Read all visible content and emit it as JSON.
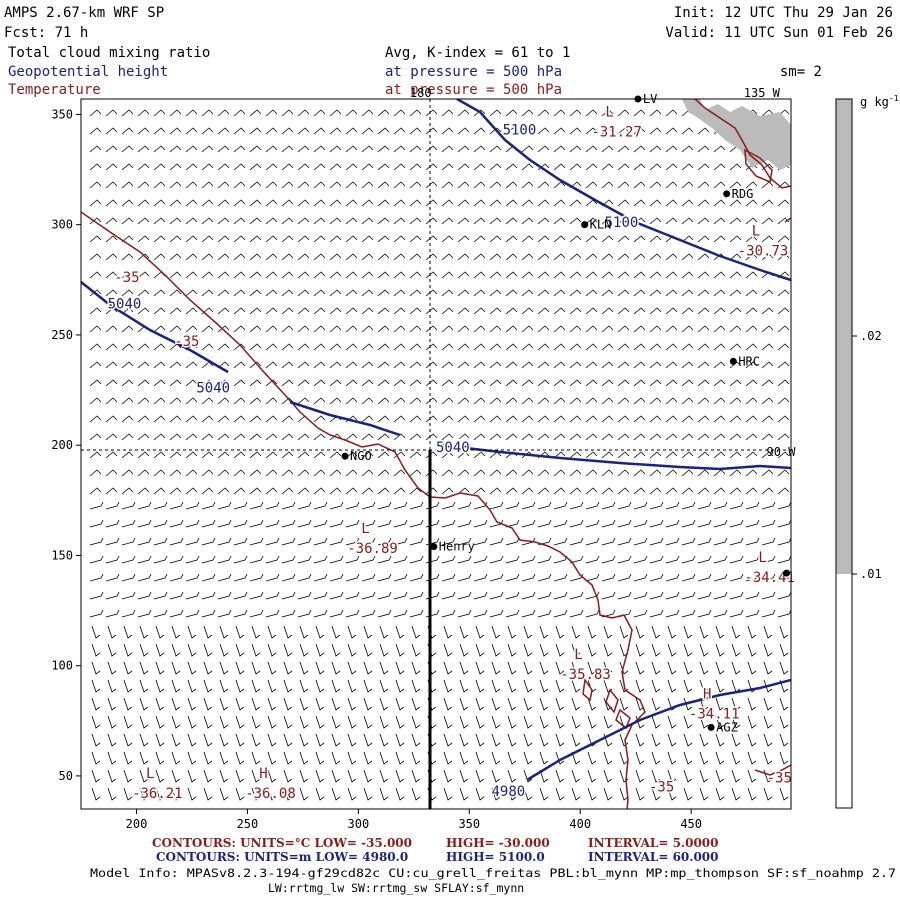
{
  "header": {
    "left1": "AMPS 2.67-km WRF SP",
    "left2": "Fcst:    71 h",
    "left3": "Total cloud mixing ratio",
    "left4": "Geopotential height",
    "left5": "Temperature",
    "mid1": "Avg, K-index =  61 to   1",
    "mid2": "at pressure =  500 hPa",
    "mid3": "at pressure =  500 hPa",
    "right1": "Init: 12 UTC Thu 29 Jan 26",
    "right2": "Valid: 11 UTC Sun 01 Feb 26",
    "sm": "sm= 2"
  },
  "colors": {
    "red": "#8b1a1a",
    "blue": "#1a237e",
    "gray": "#bbbbbb",
    "black": "#000000"
  },
  "chart_data": {
    "type": "map-cross-section",
    "xaxis": {
      "range": [
        175,
        495
      ],
      "ticks": [
        200,
        250,
        300,
        350,
        400,
        450
      ]
    },
    "yaxis": {
      "range": [
        35,
        357
      ],
      "ticks": [
        50,
        100,
        150,
        200,
        250,
        300,
        350
      ]
    },
    "lon_labels": [
      {
        "text": "180",
        "x": 333,
        "y": 358
      },
      {
        "text": "135 W",
        "x": 490,
        "y": 358
      },
      {
        "text": "90 W",
        "x": 497,
        "y": 195
      }
    ],
    "crosshair": {
      "x": 333,
      "y": 195
    },
    "stations": [
      {
        "name": "LV",
        "x": 426,
        "y": 357
      },
      {
        "name": "RDG",
        "x": 466,
        "y": 314
      },
      {
        "name": "KLN",
        "x": 402,
        "y": 300
      },
      {
        "name": "HRC",
        "x": 469,
        "y": 238
      },
      {
        "name": "NGO",
        "x": 294,
        "y": 195
      },
      {
        "name": "Henry",
        "x": 334,
        "y": 154
      },
      {
        "name": "AGZ",
        "x": 459,
        "y": 72
      },
      {
        "name": "",
        "x": 493,
        "y": 142
      }
    ],
    "temperature": {
      "units": "°C",
      "low": "-35.000",
      "high": "-30.000",
      "interval": "5.0000",
      "contour_labels": [
        {
          "text": "-35",
          "x": 190,
          "y": 274
        },
        {
          "text": "-35",
          "x": 217,
          "y": 245
        },
        {
          "text": "-35",
          "x": 431,
          "y": 43
        },
        {
          "text": "-35",
          "x": 484,
          "y": 47
        }
      ],
      "extrema": [
        {
          "kind": "L",
          "value": "-31.27",
          "x": 405,
          "y": 340
        },
        {
          "kind": "L",
          "value": "-30.73",
          "x": 471,
          "y": 286
        },
        {
          "kind": "L",
          "value": "-36.89",
          "x": 295,
          "y": 151
        },
        {
          "kind": "L",
          "value": "-34.41",
          "x": 474,
          "y": 138
        },
        {
          "kind": "L",
          "value": "-35.83",
          "x": 391,
          "y": 94
        },
        {
          "kind": "H",
          "value": "-34.11",
          "x": 449,
          "y": 76
        },
        {
          "kind": "L",
          "value": "-36.21",
          "x": 198,
          "y": 40
        },
        {
          "kind": "H",
          "value": "-36.08",
          "x": 249,
          "y": 40
        }
      ]
    },
    "height": {
      "units": "m",
      "low": "4980.0",
      "high": "5100.0",
      "interval": "60.000",
      "contour_labels": [
        {
          "text": "5100",
          "x": 365,
          "y": 341
        },
        {
          "text": "5100",
          "x": 411,
          "y": 299
        },
        {
          "text": "5040",
          "x": 187,
          "y": 262
        },
        {
          "text": "5040",
          "x": 227,
          "y": 224
        },
        {
          "text": "5040",
          "x": 335,
          "y": 197
        },
        {
          "text": "4980",
          "x": 360,
          "y": 41
        }
      ]
    },
    "colorbar": {
      "units": "g kg",
      "units_sup": "-1",
      "labels": [
        ".02",
        ".01"
      ]
    }
  },
  "footer": {
    "t_label": "CONTOURS:  UNITS=°C  LOW=  -35.000",
    "t_high": "HIGH=  -30.000",
    "t_int": "INTERVAL=    5.0000",
    "h_label": "CONTOURS:  UNITS=m  LOW=    4980.0",
    "h_high": "HIGH=   5100.0",
    "h_int": "INTERVAL=   60.000",
    "model1": "Model Info: MPASv8.2.3-194-gf29cd82c CU:cu_grell_freitas PBL:bl_mynn MP:mp_thompson SF:sf_noahmp 2.7",
    "model2": "LW:rrtmg_lw SW:rrtmg_sw SFLAY:sf_mynn"
  }
}
